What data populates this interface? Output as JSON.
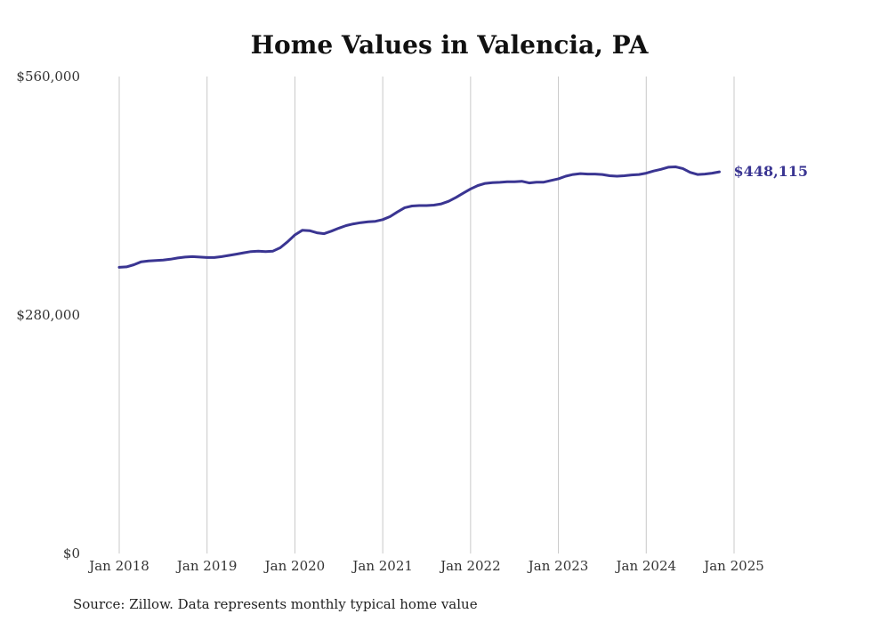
{
  "chart_data": {
    "type": "line",
    "title": "Home Values in Valencia, PA",
    "source": "Source: Zillow. Data represents monthly typical home value",
    "ylim": [
      0,
      560000
    ],
    "yticks": [
      {
        "value": 0,
        "label": "$0"
      },
      {
        "value": 280000,
        "label": "$280,000"
      },
      {
        "value": 560000,
        "label": "$560,000"
      }
    ],
    "xticks": [
      {
        "value": "2018-01",
        "label": "Jan 2018"
      },
      {
        "value": "2019-01",
        "label": "Jan 2019"
      },
      {
        "value": "2020-01",
        "label": "Jan 2020"
      },
      {
        "value": "2021-01",
        "label": "Jan 2021"
      },
      {
        "value": "2022-01",
        "label": "Jan 2022"
      },
      {
        "value": "2023-01",
        "label": "Jan 2023"
      },
      {
        "value": "2024-01",
        "label": "Jan 2024"
      },
      {
        "value": "2025-01",
        "label": "Jan 2025"
      }
    ],
    "grid": "vertical",
    "series": [
      {
        "color": "#3a3592",
        "end_label": "$448,115",
        "points": [
          [
            "2018-01",
            336000
          ],
          [
            "2018-02",
            336500
          ],
          [
            "2018-03",
            339000
          ],
          [
            "2018-04",
            342500
          ],
          [
            "2018-05",
            343500
          ],
          [
            "2018-06",
            344000
          ],
          [
            "2018-07",
            344500
          ],
          [
            "2018-08",
            345500
          ],
          [
            "2018-09",
            347000
          ],
          [
            "2018-10",
            348000
          ],
          [
            "2018-11",
            348500
          ],
          [
            "2018-12",
            348000
          ],
          [
            "2019-01",
            347500
          ],
          [
            "2019-02",
            347500
          ],
          [
            "2019-03",
            348500
          ],
          [
            "2019-04",
            350000
          ],
          [
            "2019-05",
            351500
          ],
          [
            "2019-06",
            353000
          ],
          [
            "2019-07",
            354500
          ],
          [
            "2019-08",
            355000
          ],
          [
            "2019-09",
            354500
          ],
          [
            "2019-10",
            355000
          ],
          [
            "2019-11",
            359000
          ],
          [
            "2019-12",
            366000
          ],
          [
            "2020-01",
            374000
          ],
          [
            "2020-02",
            379500
          ],
          [
            "2020-03",
            379000
          ],
          [
            "2020-04",
            376500
          ],
          [
            "2020-05",
            375500
          ],
          [
            "2020-06",
            378500
          ],
          [
            "2020-07",
            382000
          ],
          [
            "2020-08",
            385000
          ],
          [
            "2020-09",
            387000
          ],
          [
            "2020-10",
            388500
          ],
          [
            "2020-11",
            389500
          ],
          [
            "2020-12",
            390000
          ],
          [
            "2021-01",
            392000
          ],
          [
            "2021-02",
            395500
          ],
          [
            "2021-03",
            401000
          ],
          [
            "2021-04",
            406000
          ],
          [
            "2021-05",
            408000
          ],
          [
            "2021-06",
            408500
          ],
          [
            "2021-07",
            408500
          ],
          [
            "2021-08",
            409000
          ],
          [
            "2021-09",
            410500
          ],
          [
            "2021-10",
            413500
          ],
          [
            "2021-11",
            418000
          ],
          [
            "2021-12",
            423000
          ],
          [
            "2022-01",
            428000
          ],
          [
            "2022-02",
            432000
          ],
          [
            "2022-03",
            434500
          ],
          [
            "2022-04",
            435500
          ],
          [
            "2022-05",
            435800
          ],
          [
            "2022-06",
            436500
          ],
          [
            "2022-07",
            436500
          ],
          [
            "2022-08",
            437000
          ],
          [
            "2022-09",
            435000
          ],
          [
            "2022-10",
            436000
          ],
          [
            "2022-11",
            436000
          ],
          [
            "2022-12",
            438000
          ],
          [
            "2023-01",
            440000
          ],
          [
            "2023-02",
            443000
          ],
          [
            "2023-03",
            445000
          ],
          [
            "2023-04",
            446000
          ],
          [
            "2023-05",
            445500
          ],
          [
            "2023-06",
            445500
          ],
          [
            "2023-07",
            445000
          ],
          [
            "2023-08",
            443500
          ],
          [
            "2023-09",
            443000
          ],
          [
            "2023-10",
            443500
          ],
          [
            "2023-11",
            444500
          ],
          [
            "2023-12",
            445000
          ],
          [
            "2024-01",
            446500
          ],
          [
            "2024-02",
            449000
          ],
          [
            "2024-03",
            451000
          ],
          [
            "2024-04",
            453500
          ],
          [
            "2024-05",
            454000
          ],
          [
            "2024-06",
            452000
          ],
          [
            "2024-07",
            447500
          ],
          [
            "2024-08",
            445000
          ],
          [
            "2024-09",
            445500
          ],
          [
            "2024-10",
            446500
          ],
          [
            "2024-11",
            448115
          ]
        ]
      }
    ]
  }
}
